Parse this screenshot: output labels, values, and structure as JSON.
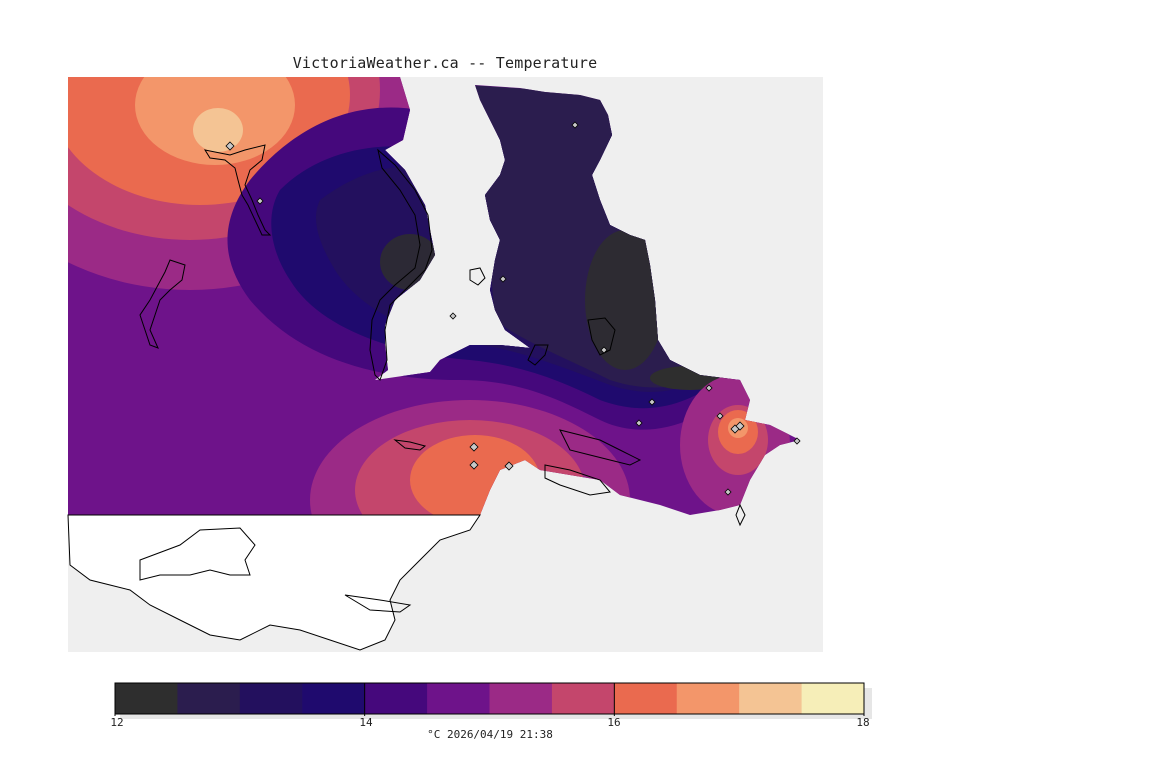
{
  "title": "VictoriaWeather.ca -- Temperature",
  "legend": {
    "ticks": [
      "12",
      "14",
      "16",
      "18"
    ],
    "caption": "°C  2026/04/19 21:38",
    "colors": [
      "#2e2e2e",
      "#2b1d4e",
      "#23105e",
      "#1f0a6e",
      "#45087c",
      "#6e138a",
      "#9b2a86",
      "#c4466c",
      "#ea6a4f",
      "#f3966a",
      "#f4c494",
      "#f6eeb8"
    ]
  },
  "map": {
    "background_color": "#efefef",
    "stations": 17
  }
}
